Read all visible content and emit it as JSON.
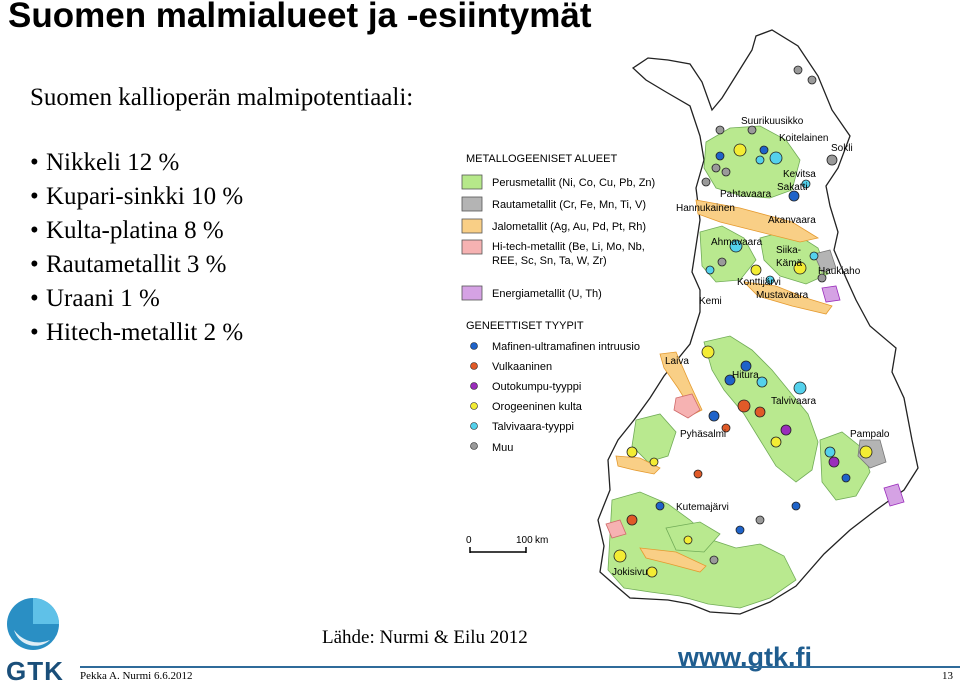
{
  "title": "Suomen malmialueet ja -esiintymät",
  "subtitle": "Suomen kallioperän malmipotentiaali:",
  "bullets": [
    "Nikkeli 12 %",
    "Kupari-sinkki 10 %",
    "Kulta-platina 8 %",
    "Rautametallit 3 %",
    "Uraani 1 %",
    "Hitech-metallit 2 %"
  ],
  "legend": {
    "areas_title": "METALLOGEENISET ALUEET",
    "areas": [
      {
        "label": "Perusmetallit (Ni, Co, Cu, Pb, Zn)",
        "color": "#b6e88a"
      },
      {
        "label": "Rautametallit (Cr, Fe, Mn, Ti, V)",
        "color": "#b4b4b4"
      },
      {
        "label": "Jalometallit (Ag, Au, Pd, Pt, Rh)",
        "color": "#f9cf86"
      },
      {
        "label_lines": [
          "Hi-tech-metallit (Be, Li, Mo, Nb,",
          "REE, Sc, Sn, Ta, W, Zr)"
        ],
        "color": "#f6b2b2"
      },
      {
        "label": "Energiametallit (U, Th)",
        "color": "#d5a2e4"
      }
    ],
    "types_title": "GENEETTISET TYYPIT",
    "types": [
      {
        "label": "Mafinen-ultramafinen intruusio",
        "color": "#1f63c9"
      },
      {
        "label": "Vulkaaninen",
        "color": "#e05a28"
      },
      {
        "label": "Outokumpu-tyyppi",
        "color": "#9a2dbb"
      },
      {
        "label": "Orogeeninen kulta",
        "color": "#f3ec34"
      },
      {
        "label": "Talvivaara-tyyppi",
        "color": "#54d1ec"
      },
      {
        "label": "Muu",
        "color": "#9a9a9a"
      }
    ]
  },
  "scale": {
    "start": "0",
    "end": "100",
    "unit": "km"
  },
  "places": [
    "Suurikuusikko",
    "Koitelainen",
    "Sokli",
    "Kevitsa",
    "Sakatti",
    "Pahtavaara",
    "Hannukainen",
    "Akanvaara",
    "Ahmavaara",
    "Siika-",
    "Kämä",
    "Haukiaho",
    "Konttijärvi",
    "Mustavaara",
    "Kemi",
    "Laiva",
    "Hitura",
    "Talvivaara",
    "Pyhäsalmi",
    "Pampalo",
    "Kutemajärvi",
    "Jokisivu"
  ],
  "source": "Lähde: Nurmi & Eilu 2012",
  "footer": {
    "author": "Pekka A. Nurmi 6.6.2012",
    "page": "13",
    "site": "www.gtk.fi",
    "logo": "GTK"
  }
}
